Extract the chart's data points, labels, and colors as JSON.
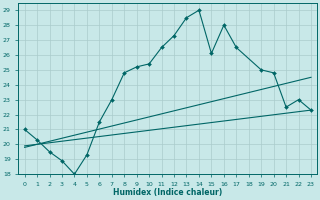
{
  "xlabel": "Humidex (Indice chaleur)",
  "ylabel": "",
  "xlim": [
    -0.5,
    23.5
  ],
  "ylim": [
    18,
    29.5
  ],
  "yticks": [
    18,
    19,
    20,
    21,
    22,
    23,
    24,
    25,
    26,
    27,
    28,
    29
  ],
  "xticks": [
    0,
    1,
    2,
    3,
    4,
    5,
    6,
    7,
    8,
    9,
    10,
    11,
    12,
    13,
    14,
    15,
    16,
    17,
    18,
    19,
    20,
    21,
    22,
    23
  ],
  "xtick_labels": [
    "0",
    "1",
    "2",
    "3",
    "4",
    "5",
    "6",
    "7",
    "8",
    "9",
    "10",
    "11",
    "12",
    "13",
    "14",
    "15",
    "16",
    "17",
    "18",
    "19",
    "20",
    "21",
    "22",
    "23"
  ],
  "bg_color": "#c8e8e8",
  "line_color": "#006666",
  "grid_color": "#aacccc",
  "main_line_x": [
    0,
    1,
    2,
    3,
    4,
    5,
    6,
    7,
    8,
    9,
    10,
    11,
    12,
    13,
    14,
    15,
    16,
    17,
    19,
    20,
    21,
    22,
    23
  ],
  "main_line_y": [
    21.0,
    20.3,
    19.5,
    18.9,
    18.0,
    19.3,
    21.5,
    23.0,
    24.8,
    25.2,
    25.4,
    26.5,
    27.3,
    28.5,
    29.0,
    26.1,
    28.0,
    26.5,
    25.0,
    24.8,
    22.5,
    23.0,
    22.3
  ],
  "reg_line1_x": [
    0,
    23
  ],
  "reg_line1_y": [
    19.8,
    24.5
  ],
  "reg_line2_x": [
    0,
    23
  ],
  "reg_line2_y": [
    19.9,
    22.3
  ]
}
